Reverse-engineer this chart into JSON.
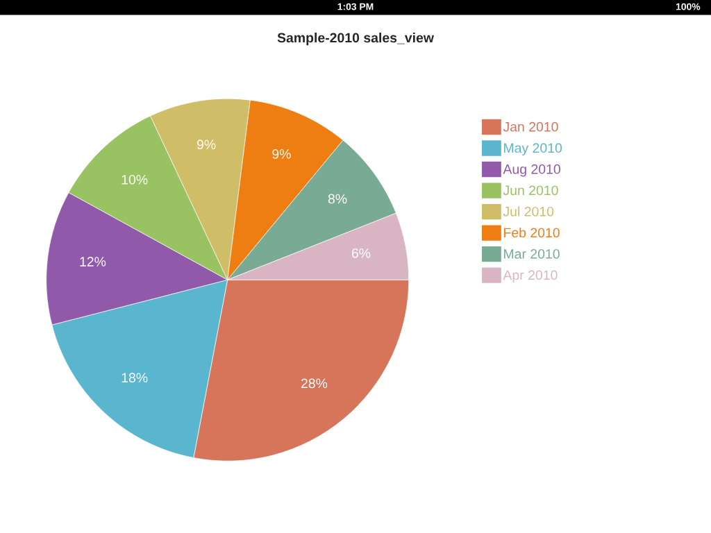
{
  "chart_data": {
    "type": "pie",
    "title": "Sample-2010 sales_view",
    "categories": [
      "Jan 2010",
      "May 2010",
      "Aug 2010",
      "Jun 2010",
      "Jul 2010",
      "Feb 2010",
      "Mar 2010",
      "Apr 2010"
    ],
    "values": [
      28,
      18,
      12,
      10,
      9,
      9,
      8,
      6
    ],
    "value_labels": [
      "28%",
      "18%",
      "12%",
      "10%",
      "9%",
      "9%",
      "8%",
      "6%"
    ],
    "colors": [
      "#d67559",
      "#5ab6cf",
      "#9159a9",
      "#99c262",
      "#cfbd68",
      "#ee7d12",
      "#79ab94",
      "#d9b5c3"
    ],
    "legend": "top right",
    "annotations": [
      "1:03 PM",
      "100%"
    ]
  }
}
